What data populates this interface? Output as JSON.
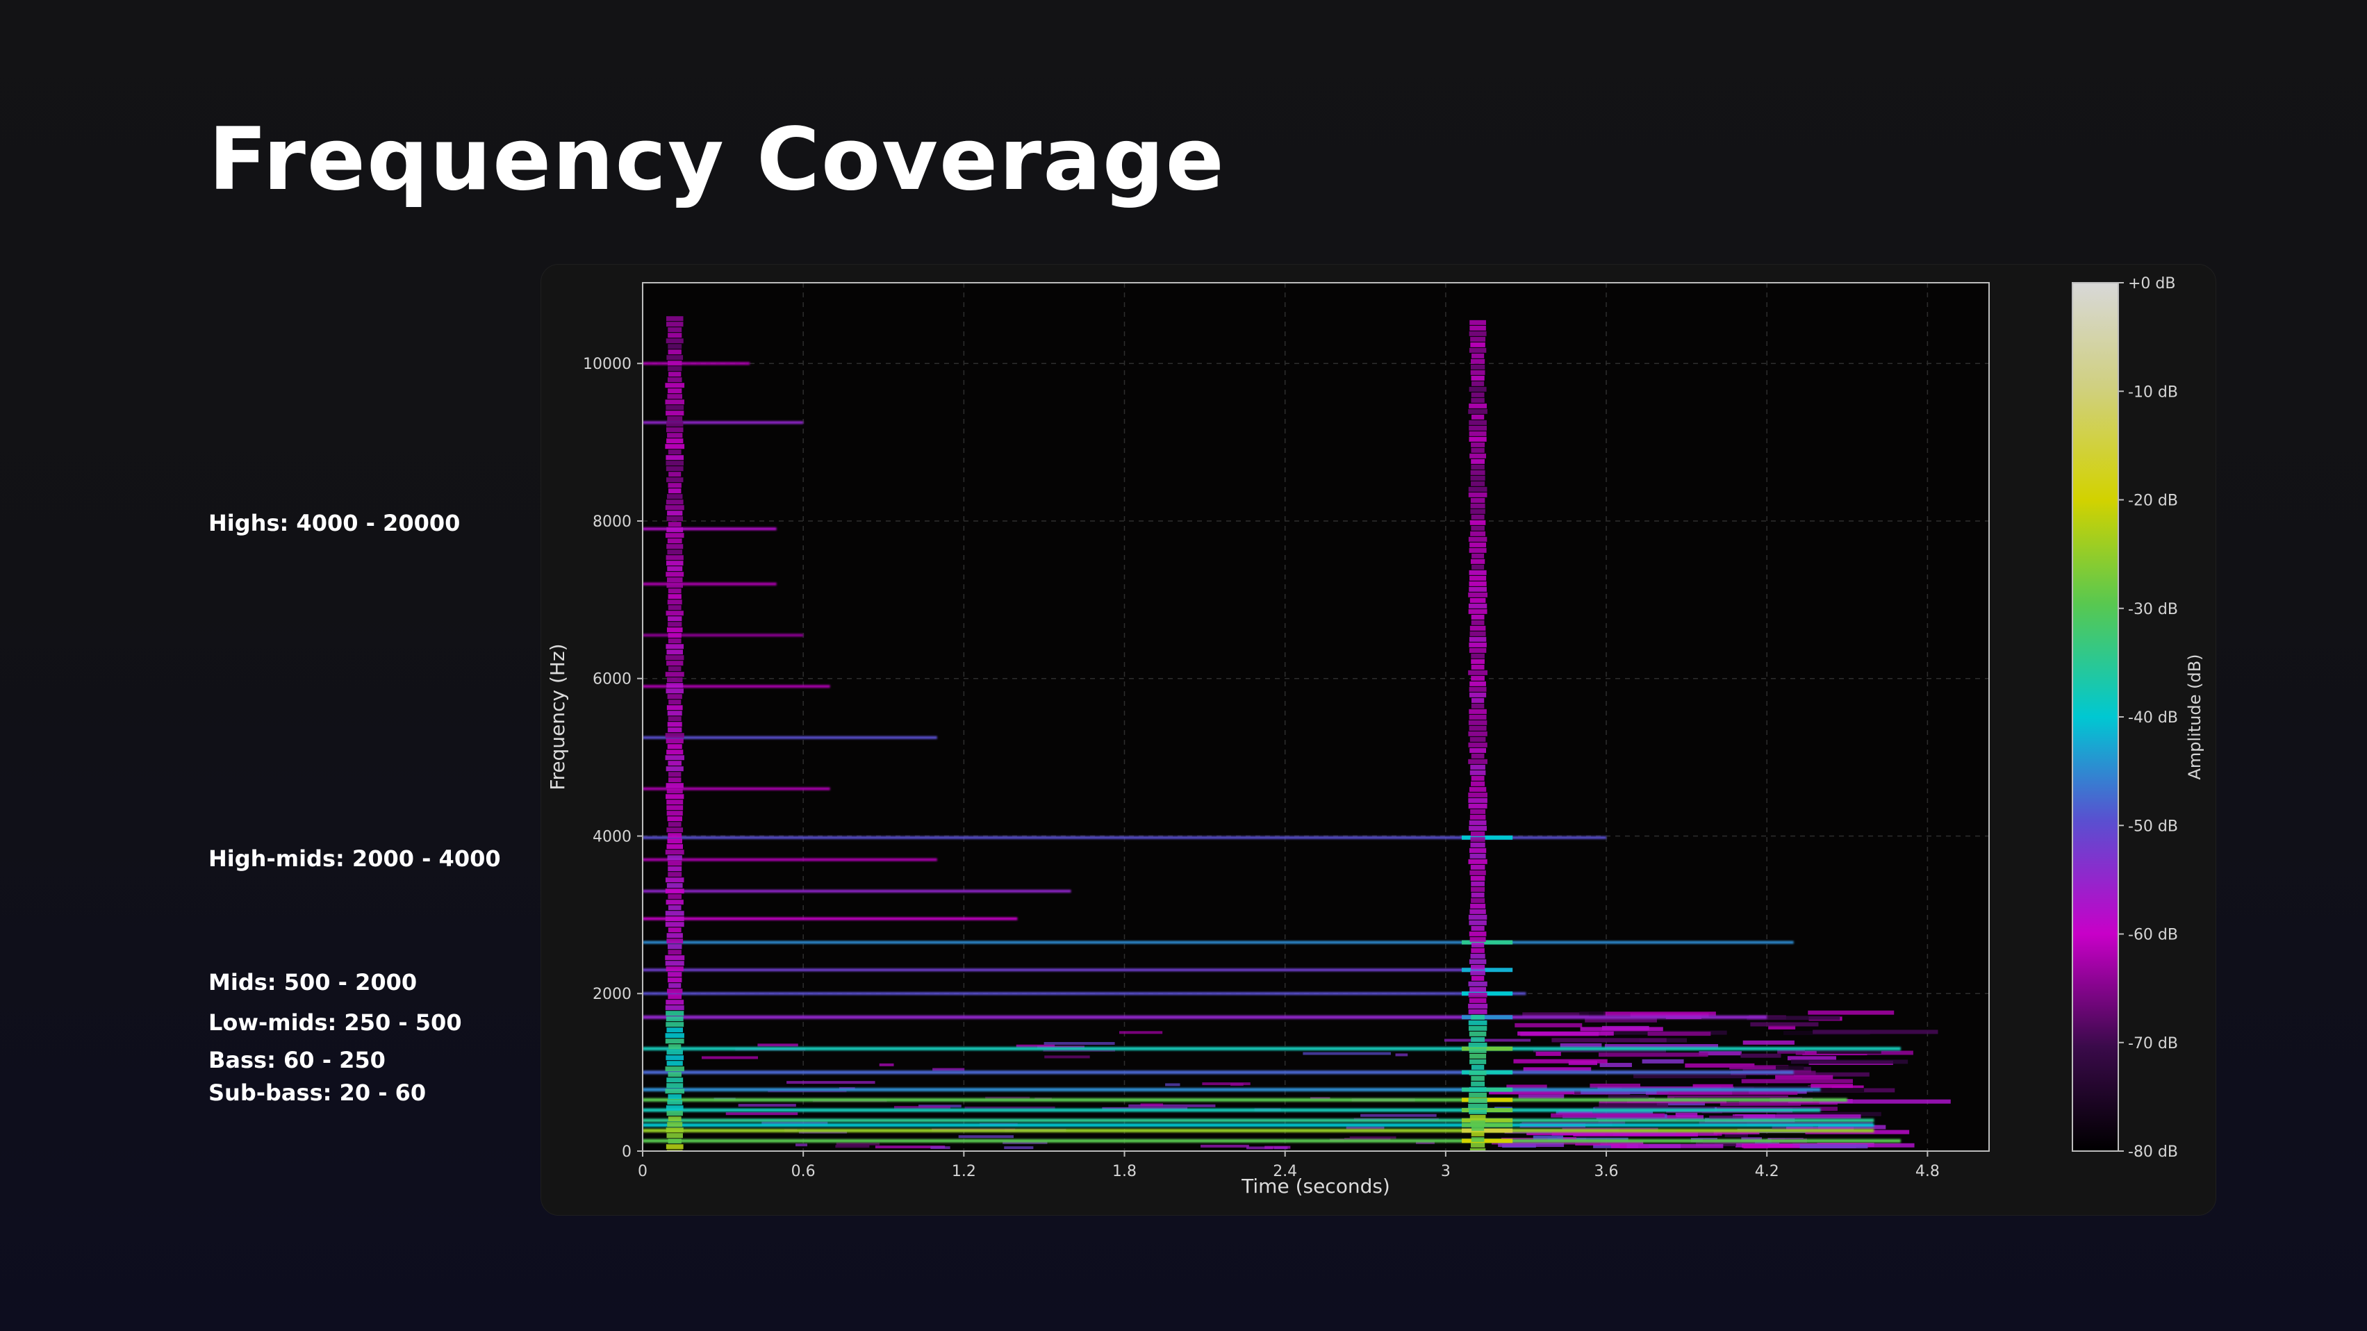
{
  "slide": {
    "title": "Frequency Coverage",
    "bands": [
      {
        "name": "Highs",
        "label": "Highs: 4000 - 20000"
      },
      {
        "name": "High-mids",
        "label": "High-mids: 2000 - 4000"
      },
      {
        "name": "Mids",
        "label": "Mids: 500 - 2000"
      },
      {
        "name": "Low-mids",
        "label": "Low-mids: 250 - 500"
      },
      {
        "name": "Bass",
        "label": "Bass: 60 - 250"
      },
      {
        "name": "Sub-bass",
        "label": "Sub-bass: 20 - 60"
      }
    ]
  },
  "colors": {
    "background": "#121214",
    "card": "#141414",
    "plot_background": "#050404",
    "text": "#ffffff",
    "colormap": [
      "#000000",
      "#3a0a4a",
      "#c800c8",
      "#5a4fd0",
      "#00c8d2",
      "#58c850",
      "#d2d200",
      "#d8d8d8"
    ]
  },
  "chart_data": {
    "type": "heatmap",
    "subtype": "spectrogram",
    "title": "",
    "xlabel": "Time (seconds)",
    "ylabel": "Frequency (Hz)",
    "xlim": [
      0,
      5.03
    ],
    "ylim": [
      0,
      11025
    ],
    "x_ticks": [
      0,
      0.6,
      1.2,
      1.8,
      2.4,
      3,
      3.6,
      4.2,
      4.8
    ],
    "x_tick_labels": [
      "0",
      "0.6",
      "1.2",
      "1.8",
      "2.4",
      "3",
      "3.6",
      "4.2",
      "4.8"
    ],
    "y_ticks": [
      0,
      2000,
      4000,
      6000,
      8000,
      10000
    ],
    "y_tick_labels": [
      "0",
      "2000",
      "4000",
      "6000",
      "8000",
      "10000"
    ],
    "grid": true,
    "colorbar": {
      "label": "Amplitude (dB)",
      "range": [
        -80,
        0
      ],
      "ticks": [
        0,
        -10,
        -20,
        -30,
        -40,
        -50,
        -60,
        -70,
        -80
      ],
      "tick_labels": [
        "+0 dB",
        "-10 dB",
        "-20 dB",
        "-30 dB",
        "-40 dB",
        "-50 dB",
        "-60 dB",
        "-70 dB",
        "-80 dB"
      ]
    },
    "onsets_seconds": [
      0.12,
      3.12
    ],
    "harmonic_partials": [
      {
        "freq": 130,
        "db": -30,
        "start": 0.0,
        "end": 4.7
      },
      {
        "freq": 260,
        "db": -25,
        "start": 0.0,
        "end": 4.6
      },
      {
        "freq": 330,
        "db": -40,
        "start": 0.0,
        "end": 4.6
      },
      {
        "freq": 390,
        "db": -35,
        "start": 0.0,
        "end": 4.6
      },
      {
        "freq": 520,
        "db": -38,
        "start": 0.0,
        "end": 4.4
      },
      {
        "freq": 650,
        "db": -30,
        "start": 0.0,
        "end": 4.5
      },
      {
        "freq": 780,
        "db": -45,
        "start": 0.0,
        "end": 4.4
      },
      {
        "freq": 1000,
        "db": -48,
        "start": 0.0,
        "end": 4.3
      },
      {
        "freq": 1300,
        "db": -38,
        "start": 0.0,
        "end": 4.7
      },
      {
        "freq": 1700,
        "db": -55,
        "start": 0.0,
        "end": 4.2
      },
      {
        "freq": 2000,
        "db": -50,
        "start": 0.0,
        "end": 3.3
      },
      {
        "freq": 2300,
        "db": -52,
        "start": 0.0,
        "end": 3.1
      },
      {
        "freq": 2650,
        "db": -45,
        "start": 0.0,
        "end": 4.3
      },
      {
        "freq": 2950,
        "db": -60,
        "start": 0.0,
        "end": 1.4
      },
      {
        "freq": 3300,
        "db": -55,
        "start": 0.0,
        "end": 1.6
      },
      {
        "freq": 3700,
        "db": -62,
        "start": 0.0,
        "end": 1.1
      },
      {
        "freq": 3980,
        "db": -50,
        "start": 0.0,
        "end": 3.6
      },
      {
        "freq": 4600,
        "db": -62,
        "start": 0.0,
        "end": 0.7
      },
      {
        "freq": 5250,
        "db": -50,
        "start": 0.0,
        "end": 1.1
      },
      {
        "freq": 5900,
        "db": -62,
        "start": 0.0,
        "end": 0.7
      },
      {
        "freq": 6550,
        "db": -64,
        "start": 0.0,
        "end": 0.6
      },
      {
        "freq": 7200,
        "db": -62,
        "start": 0.0,
        "end": 0.5
      },
      {
        "freq": 7900,
        "db": -58,
        "start": 0.0,
        "end": 0.5
      },
      {
        "freq": 9250,
        "db": -55,
        "start": 0.0,
        "end": 0.6
      },
      {
        "freq": 10000,
        "db": -62,
        "start": 0.0,
        "end": 0.4
      }
    ]
  }
}
